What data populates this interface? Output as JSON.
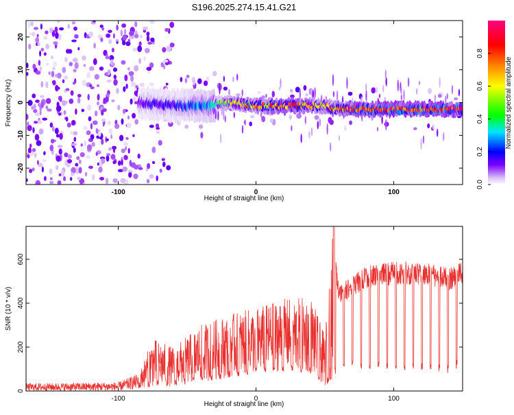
{
  "title": "S196.2025.274.15.41.G21",
  "chart_data": [
    {
      "type": "heatmap",
      "xlabel": "Height of straight line (km)",
      "ylabel": "Frequency (Hz)",
      "xlim": [
        -167,
        150
      ],
      "ylim": [
        -25,
        25
      ],
      "x_ticks": [
        -100,
        0,
        100
      ],
      "y_ticks": [
        -20,
        -10,
        0,
        10,
        20
      ],
      "colorbar": {
        "label": "Normalized spectral amplitude",
        "range": [
          0,
          1
        ],
        "ticks": [
          "0.0",
          "0.2",
          "0.4",
          "0.6",
          "0.8"
        ],
        "colormap": "rainbow (white-violet-blue-cyan-green-yellow-red-magenta)"
      },
      "signal_track": [
        {
          "x": -85,
          "freq": 0,
          "amp": 0.15
        },
        {
          "x": -60,
          "freq": -1,
          "amp": 0.2
        },
        {
          "x": -35,
          "freq": -1,
          "amp": 0.3
        },
        {
          "x": -20,
          "freq": 0,
          "amp": 0.5
        },
        {
          "x": 0,
          "freq": -1,
          "amp": 0.7
        },
        {
          "x": 25,
          "freq": -1,
          "amp": 0.8
        },
        {
          "x": 50,
          "freq": -1,
          "amp": 0.6
        },
        {
          "x": 58,
          "freq": -2,
          "amp": 0.7
        },
        {
          "x": 80,
          "freq": -2,
          "amp": 0.9
        },
        {
          "x": 100,
          "freq": -2,
          "amp": 0.9
        },
        {
          "x": 150,
          "freq": -2,
          "amp": 0.9
        }
      ]
    },
    {
      "type": "line",
      "xlabel": "Height of straight line (km)",
      "ylabel": "SNR (10 * v/v)",
      "xlim": [
        -167,
        150
      ],
      "ylim": [
        0,
        750
      ],
      "x_ticks": [
        -100,
        0,
        100
      ],
      "y_ticks": [
        0,
        200,
        400,
        600
      ],
      "series": [
        {
          "name": "SNR",
          "color": "#e8312f",
          "envelope": [
            {
              "x": -167,
              "low": 0,
              "high": 35
            },
            {
              "x": -100,
              "low": 0,
              "high": 40
            },
            {
              "x": -85,
              "low": 10,
              "high": 80
            },
            {
              "x": -75,
              "low": 20,
              "high": 240
            },
            {
              "x": -60,
              "low": 20,
              "high": 200
            },
            {
              "x": -40,
              "low": 40,
              "high": 300
            },
            {
              "x": -20,
              "low": 60,
              "high": 350
            },
            {
              "x": 0,
              "low": 80,
              "high": 380
            },
            {
              "x": 20,
              "low": 90,
              "high": 420
            },
            {
              "x": 40,
              "low": 80,
              "high": 430
            },
            {
              "x": 50,
              "low": 20,
              "high": 250
            },
            {
              "x": 56,
              "low": 60,
              "high": 750
            },
            {
              "x": 60,
              "low": 100,
              "high": 480
            },
            {
              "x": 80,
              "low": 100,
              "high": 570
            },
            {
              "x": 100,
              "low": 100,
              "high": 590
            },
            {
              "x": 120,
              "low": 90,
              "high": 590
            },
            {
              "x": 140,
              "low": 80,
              "high": 560
            },
            {
              "x": 150,
              "low": 120,
              "high": 590
            }
          ]
        }
      ]
    }
  ]
}
